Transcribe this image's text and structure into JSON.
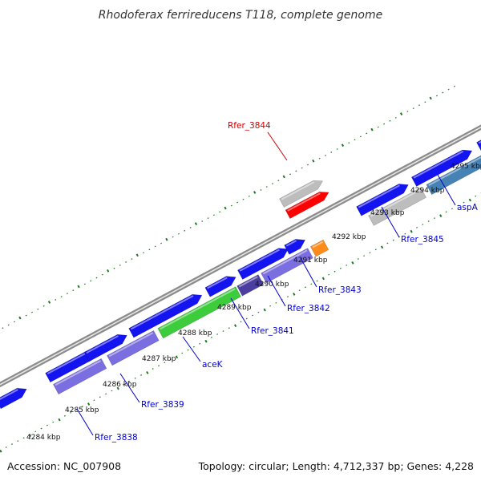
{
  "title": "Rhodoferax ferrireducens T118, complete genome",
  "accession_label": "Accession: NC_007908",
  "stats_label": "Topology: circular; Length: 4,712,337 bp; Genes: 4,228",
  "colors": {
    "backbone": "#8c8c8c",
    "tick": "#1f7a1f",
    "label_blue": "#0000cc",
    "label_red": "#cc0000"
  },
  "coordinate_ticks": [
    {
      "label": "4284 kbp"
    },
    {
      "label": "4285 kbp"
    },
    {
      "label": "4286 kbp"
    },
    {
      "label": "4287 kbp"
    },
    {
      "label": "4288 kbp"
    },
    {
      "label": "4289 kbp"
    },
    {
      "label": "4290 kbp"
    },
    {
      "label": "4291 kbp"
    },
    {
      "label": "4292 kbp"
    },
    {
      "label": "4293 kbp"
    },
    {
      "label": "4294 kbp"
    },
    {
      "label": "4295 kbp"
    }
  ],
  "gene_labels": [
    {
      "name": "Rfer_3844",
      "color": "#cc0000"
    },
    {
      "name": "Rfer_3845",
      "color": "#0000cc"
    },
    {
      "name": "aspA",
      "color": "#0000cc"
    },
    {
      "name": "Rfer_3843",
      "color": "#0000cc"
    },
    {
      "name": "Rfer_3842",
      "color": "#0000cc"
    },
    {
      "name": "Rfer_3841",
      "color": "#0000cc"
    },
    {
      "name": "aceK",
      "color": "#0000cc"
    },
    {
      "name": "Rfer_3839",
      "color": "#0000cc"
    },
    {
      "name": "Rfer_3838",
      "color": "#0000cc"
    }
  ]
}
